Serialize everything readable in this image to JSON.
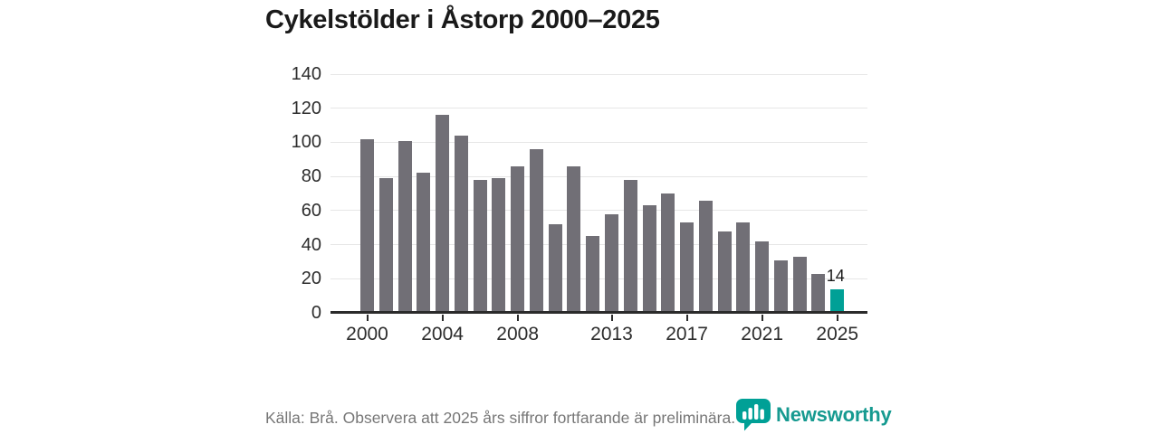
{
  "title": "Cykelstölder i Åstorp 2000–2025",
  "footer": {
    "source_note": "Källa: Brå. Observera att 2025 års siffror fortfarande är preliminära.",
    "brand": "Newsworthy"
  },
  "colors": {
    "bar": "#716f76",
    "highlight": "#00a096",
    "brand_text": "#169a90",
    "grid": "#e6e6e6",
    "axis": "#2b2b2b",
    "label_text": "#2d2d2d",
    "muted_text": "#777777"
  },
  "chart_data": {
    "type": "bar",
    "title": "Cykelstölder i Åstorp 2000–2025",
    "categories": [
      2000,
      2001,
      2002,
      2003,
      2004,
      2005,
      2006,
      2007,
      2008,
      2009,
      2010,
      2011,
      2012,
      2013,
      2014,
      2015,
      2016,
      2017,
      2018,
      2019,
      2020,
      2021,
      2022,
      2023,
      2024,
      2025
    ],
    "values": [
      102,
      79,
      101,
      82,
      116,
      104,
      78,
      79,
      86,
      96,
      52,
      86,
      45,
      58,
      78,
      63,
      70,
      53,
      66,
      48,
      53,
      42,
      31,
      33,
      23,
      14
    ],
    "highlight_index": 25,
    "highlight_label": "14",
    "xlabel": "",
    "ylabel": "",
    "ylim": [
      0,
      140
    ],
    "yticks": [
      0,
      20,
      40,
      60,
      80,
      100,
      120,
      140
    ],
    "xticks": [
      2000,
      2004,
      2008,
      2013,
      2017,
      2021,
      2025
    ],
    "grid": true,
    "legend": false
  }
}
